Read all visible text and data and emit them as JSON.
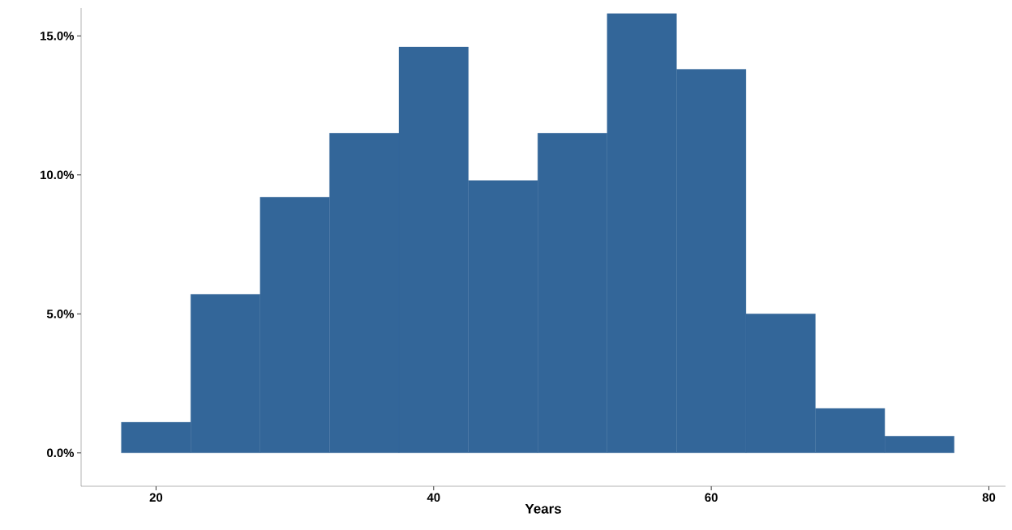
{
  "chart_data": {
    "type": "histogram",
    "xlabel": "Years",
    "bins": [
      17.5,
      22.5,
      27.5,
      32.5,
      37.5,
      42.5,
      47.5,
      52.5,
      57.5,
      62.5,
      67.5,
      72.5,
      77.5
    ],
    "values": [
      1.1,
      5.7,
      9.2,
      11.5,
      14.6,
      9.8,
      11.5,
      15.8,
      13.8,
      5.0,
      1.6,
      0.6
    ],
    "color": "#336699",
    "xlim": [
      14.6,
      81.2
    ],
    "xticks": [
      20,
      40,
      60,
      80
    ],
    "ylim": [
      -1.2,
      16.0
    ],
    "yticks": [
      {
        "value": 0,
        "label": "0.0%"
      },
      {
        "value": 5,
        "label": "5.0%"
      },
      {
        "value": 10,
        "label": "10.0%"
      },
      {
        "value": 15,
        "label": "15.0%"
      }
    ],
    "grid": false
  }
}
